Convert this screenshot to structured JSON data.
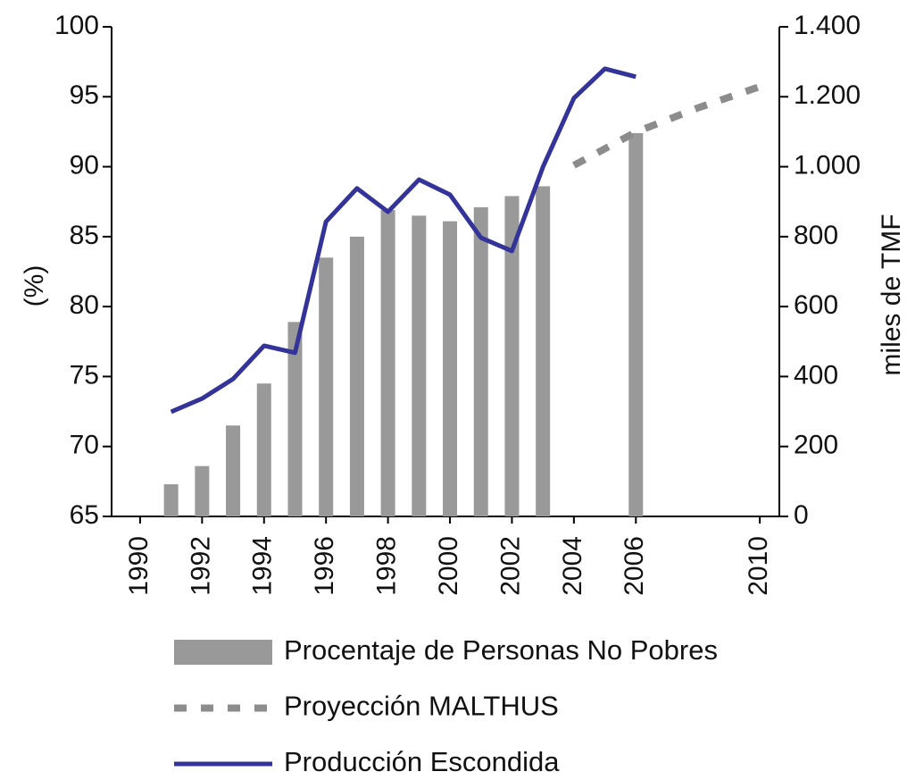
{
  "chart_data": {
    "type": "bar",
    "ylabel": "(%)",
    "y2label": "miles de TMF",
    "xlim": [
      1989.08,
      2010.63
    ],
    "xticks": [
      1990,
      1992,
      1994,
      1996,
      1998,
      2000,
      2002,
      2004,
      2006,
      2010
    ],
    "ylim": [
      65,
      100
    ],
    "yticks": [
      65,
      70,
      75,
      80,
      85,
      90,
      95,
      100
    ],
    "y2lim": [
      0,
      1400
    ],
    "y2ticks": [
      {
        "value": 0,
        "label": "0"
      },
      {
        "value": 200,
        "label": "200"
      },
      {
        "value": 400,
        "label": "400"
      },
      {
        "value": 600,
        "label": "600"
      },
      {
        "value": 800,
        "label": "800"
      },
      {
        "value": 1000,
        "label": "1.000"
      },
      {
        "value": 1200,
        "label": "1.200"
      },
      {
        "value": 1400,
        "label": "1.400"
      }
    ],
    "series": [
      {
        "name": "Procentaje de Personas No Pobres",
        "type": "bar",
        "color": "#999999",
        "axis": "y",
        "x": [
          1991,
          1992,
          1993,
          1994,
          1995,
          1996,
          1997,
          1998,
          1999,
          2000,
          2001,
          2002,
          2003,
          2006
        ],
        "values": [
          67.3,
          68.6,
          71.5,
          74.5,
          78.9,
          83.5,
          85.0,
          86.9,
          86.5,
          86.1,
          87.1,
          87.9,
          88.6,
          92.4
        ]
      },
      {
        "name": "Proyección MALTHUS",
        "type": "line",
        "style": "dashed",
        "color": "#8c8c8c",
        "axis": "y2",
        "x": [
          2004,
          2006,
          2008,
          2010
        ],
        "values": [
          1004,
          1099,
          1168,
          1229
        ]
      },
      {
        "name": "Producción Escondida",
        "type": "line",
        "style": "solid",
        "color": "#333399",
        "axis": "y2",
        "x": [
          1991,
          1992,
          1993,
          1994,
          1995,
          1996,
          1997,
          1998,
          1999,
          2000,
          2001,
          2002,
          2003,
          2004,
          2005,
          2006
        ],
        "values": [
          299,
          337,
          393,
          488,
          468,
          843,
          938,
          871,
          963,
          920,
          797,
          759,
          999,
          1196,
          1280,
          1257
        ]
      }
    ]
  }
}
